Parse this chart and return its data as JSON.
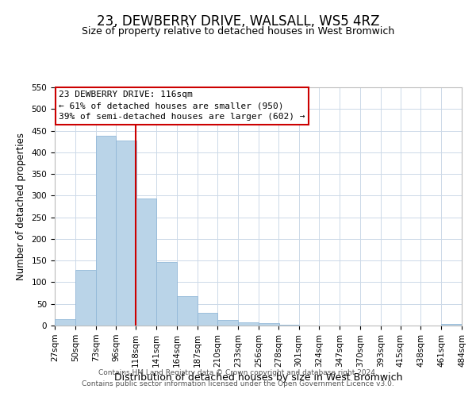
{
  "title": "23, DEWBERRY DRIVE, WALSALL, WS5 4RZ",
  "subtitle": "Size of property relative to detached houses in West Bromwich",
  "xlabel": "Distribution of detached houses by size in West Bromwich",
  "ylabel": "Number of detached properties",
  "footer_line1": "Contains HM Land Registry data © Crown copyright and database right 2024.",
  "footer_line2": "Contains public sector information licensed under the Open Government Licence v3.0.",
  "bin_edges": [
    27,
    50,
    73,
    96,
    118,
    141,
    164,
    187,
    210,
    233,
    256,
    278,
    301,
    324,
    347,
    370,
    393,
    415,
    438,
    461,
    484
  ],
  "bin_labels": [
    "27sqm",
    "50sqm",
    "73sqm",
    "96sqm",
    "118sqm",
    "141sqm",
    "164sqm",
    "187sqm",
    "210sqm",
    "233sqm",
    "256sqm",
    "278sqm",
    "301sqm",
    "324sqm",
    "347sqm",
    "370sqm",
    "393sqm",
    "415sqm",
    "438sqm",
    "461sqm",
    "484sqm"
  ],
  "counts": [
    15,
    128,
    438,
    427,
    293,
    147,
    67,
    29,
    13,
    8,
    5,
    2,
    0,
    0,
    0,
    0,
    0,
    0,
    0,
    4
  ],
  "bar_color": "#bad4e8",
  "bar_edge_color": "#92b8d8",
  "property_line_x": 118,
  "annotation_title": "23 DEWBERRY DRIVE: 116sqm",
  "annotation_line1": "← 61% of detached houses are smaller (950)",
  "annotation_line2": "39% of semi-detached houses are larger (602) →",
  "annotation_box_color": "#ffffff",
  "annotation_box_edge_color": "#cc0000",
  "line_color": "#cc0000",
  "ylim": [
    0,
    550
  ],
  "yticks": [
    0,
    50,
    100,
    150,
    200,
    250,
    300,
    350,
    400,
    450,
    500,
    550
  ],
  "bg_color": "#ffffff",
  "grid_color": "#ccd9e8",
  "title_fontsize": 12,
  "subtitle_fontsize": 9,
  "xlabel_fontsize": 9,
  "ylabel_fontsize": 8.5,
  "tick_fontsize": 7.5,
  "annotation_fontsize": 8,
  "footer_fontsize": 6.5
}
